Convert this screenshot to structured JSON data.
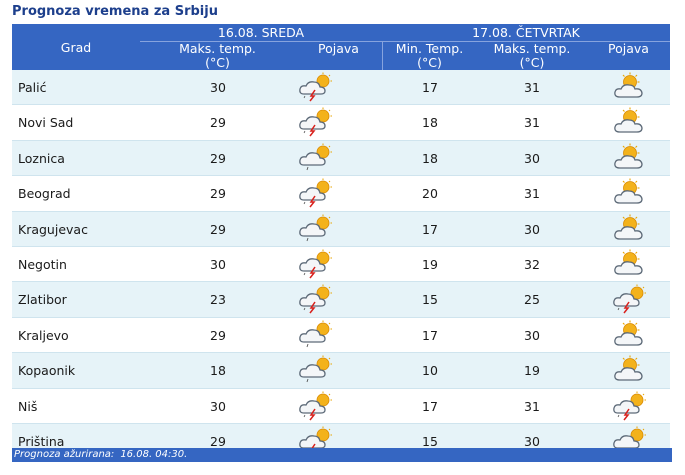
{
  "page_title": "Prognoza vremena za Srbiju",
  "header": {
    "city_col": "Grad",
    "day1": "16.08. SREDA",
    "day2": "17.08. ČETVRTAK",
    "max_temp": "Maks. temp.",
    "min_temp": "Min. Temp.",
    "unit": "(°C)",
    "phenomenon": "Pojava"
  },
  "rows": [
    {
      "city": "Palić",
      "d1_max": "30",
      "d1_icon": "storm-icon",
      "d2_min": "17",
      "d2_max": "31",
      "d2_icon": "partly-cloudy-icon"
    },
    {
      "city": "Novi Sad",
      "d1_max": "29",
      "d1_icon": "storm-icon",
      "d2_min": "18",
      "d2_max": "31",
      "d2_icon": "partly-cloudy-icon"
    },
    {
      "city": "Loznica",
      "d1_max": "29",
      "d1_icon": "shower-icon",
      "d2_min": "18",
      "d2_max": "30",
      "d2_icon": "partly-cloudy-icon"
    },
    {
      "city": "Beograd",
      "d1_max": "29",
      "d1_icon": "storm-icon",
      "d2_min": "20",
      "d2_max": "31",
      "d2_icon": "partly-cloudy-icon"
    },
    {
      "city": "Kragujevac",
      "d1_max": "29",
      "d1_icon": "shower-icon",
      "d2_min": "17",
      "d2_max": "30",
      "d2_icon": "partly-cloudy-icon"
    },
    {
      "city": "Negotin",
      "d1_max": "30",
      "d1_icon": "storm-icon",
      "d2_min": "19",
      "d2_max": "32",
      "d2_icon": "partly-cloudy-icon"
    },
    {
      "city": "Zlatibor",
      "d1_max": "23",
      "d1_icon": "storm-icon",
      "d2_min": "15",
      "d2_max": "25",
      "d2_icon": "storm-icon"
    },
    {
      "city": "Kraljevo",
      "d1_max": "29",
      "d1_icon": "shower-icon",
      "d2_min": "17",
      "d2_max": "30",
      "d2_icon": "partly-cloudy-icon"
    },
    {
      "city": "Kopaonik",
      "d1_max": "18",
      "d1_icon": "shower-icon",
      "d2_min": "10",
      "d2_max": "19",
      "d2_icon": "partly-cloudy-icon"
    },
    {
      "city": "Niš",
      "d1_max": "30",
      "d1_icon": "storm-icon",
      "d2_min": "17",
      "d2_max": "31",
      "d2_icon": "storm-icon"
    },
    {
      "city": "Priština",
      "d1_max": "29",
      "d1_icon": "storm-icon",
      "d2_min": "15",
      "d2_max": "30",
      "d2_icon": "shower-icon"
    }
  ],
  "footer": {
    "label": "Prognoza ažurirana:",
    "value": "16.08. 04:30."
  },
  "colors": {
    "header_bg": "#3566c2",
    "row_alt": "#e6f3f8",
    "title": "#1d3f8c"
  }
}
